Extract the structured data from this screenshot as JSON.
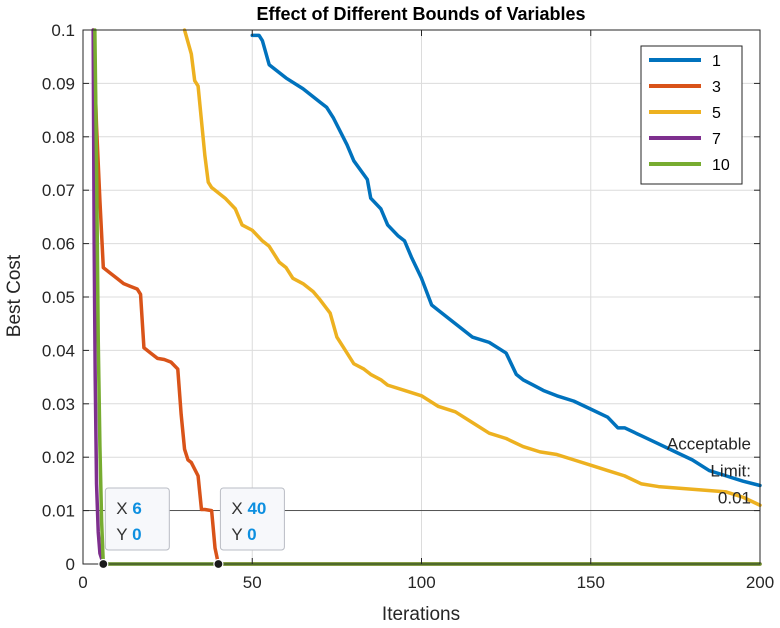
{
  "chart_data": {
    "type": "line",
    "title": "Effect of Different Bounds of Variables",
    "xlabel": "Iterations",
    "ylabel": "Best Cost",
    "xlim": [
      0,
      200
    ],
    "ylim": [
      0,
      0.1
    ],
    "xticks": [
      0,
      50,
      100,
      150,
      200
    ],
    "xtick_labels": [
      "0",
      "50",
      "100",
      "150",
      "200"
    ],
    "yticks": [
      0,
      0.01,
      0.02,
      0.03,
      0.04,
      0.05,
      0.06,
      0.07,
      0.08,
      0.09,
      0.1
    ],
    "ytick_labels": [
      "0",
      "0.01",
      "0.02",
      "0.03",
      "0.04",
      "0.05",
      "0.06",
      "0.07",
      "0.08",
      "0.09",
      "0.1"
    ],
    "grid": true,
    "legend_position": "top-right",
    "series": [
      {
        "name": "1",
        "color": "#0072bd",
        "x": [
          50,
          52,
          53,
          55,
          60,
          65,
          70,
          72,
          74,
          78,
          80,
          84,
          85,
          88,
          90,
          93,
          95,
          97,
          100,
          103,
          105,
          108,
          112,
          115,
          120,
          125,
          128,
          130,
          133,
          136,
          140,
          145,
          150,
          155,
          158,
          160,
          165,
          170,
          175,
          180,
          185,
          190,
          195,
          200
        ],
        "y": [
          0.099,
          0.099,
          0.098,
          0.0935,
          0.091,
          0.089,
          0.0865,
          0.0855,
          0.0835,
          0.0785,
          0.0755,
          0.072,
          0.0685,
          0.0665,
          0.0635,
          0.0615,
          0.0605,
          0.0575,
          0.0535,
          0.0485,
          0.0475,
          0.046,
          0.044,
          0.0425,
          0.0415,
          0.0395,
          0.0355,
          0.0345,
          0.0335,
          0.0325,
          0.0315,
          0.0305,
          0.029,
          0.0275,
          0.0255,
          0.0255,
          0.024,
          0.0225,
          0.021,
          0.0195,
          0.0175,
          0.0165,
          0.0155,
          0.0147
        ]
      },
      {
        "name": "3",
        "color": "#d95319",
        "x": [
          3,
          4,
          5,
          6,
          8,
          10,
          12,
          14,
          16,
          17,
          18,
          20,
          22,
          24,
          26,
          28,
          29,
          30,
          31,
          32,
          34,
          35,
          36,
          38,
          39,
          40,
          200
        ],
        "y": [
          0.1,
          0.082,
          0.068,
          0.0555,
          0.0545,
          0.0535,
          0.0525,
          0.052,
          0.0515,
          0.0505,
          0.0405,
          0.0395,
          0.0385,
          0.0383,
          0.0378,
          0.0365,
          0.028,
          0.0215,
          0.0195,
          0.019,
          0.0165,
          0.0102,
          0.0102,
          0.01,
          0.003,
          0.0,
          0.0
        ]
      },
      {
        "name": "5",
        "color": "#edb120",
        "x": [
          30,
          32,
          33,
          34,
          36,
          37,
          38,
          40,
          42,
          45,
          47,
          50,
          53,
          55,
          58,
          60,
          62,
          65,
          68,
          70,
          73,
          75,
          77,
          80,
          83,
          85,
          88,
          90,
          95,
          100,
          105,
          110,
          115,
          120,
          125,
          130,
          135,
          140,
          145,
          150,
          155,
          160,
          165,
          170,
          180,
          190,
          195,
          200
        ],
        "y": [
          0.1,
          0.0955,
          0.0905,
          0.0895,
          0.0765,
          0.0715,
          0.0705,
          0.0695,
          0.0685,
          0.0665,
          0.0635,
          0.0625,
          0.0605,
          0.0595,
          0.0565,
          0.0555,
          0.0535,
          0.0525,
          0.051,
          0.0495,
          0.047,
          0.0425,
          0.0405,
          0.0375,
          0.0365,
          0.0355,
          0.0345,
          0.0335,
          0.0325,
          0.0315,
          0.0295,
          0.0285,
          0.0265,
          0.0245,
          0.0235,
          0.022,
          0.021,
          0.0205,
          0.0195,
          0.0185,
          0.0175,
          0.0165,
          0.015,
          0.0145,
          0.014,
          0.0135,
          0.0125,
          0.011
        ]
      },
      {
        "name": "7",
        "color": "#7e2f8e",
        "x": [
          3,
          3.3,
          3.6,
          4,
          4.5,
          5,
          6,
          200
        ],
        "y": [
          0.1,
          0.06,
          0.035,
          0.015,
          0.006,
          0.002,
          0.0,
          0.0
        ]
      },
      {
        "name": "10",
        "color": "#77ac30",
        "x": [
          3.5,
          4,
          4.5,
          5,
          5.5,
          6,
          200
        ],
        "y": [
          0.1,
          0.075,
          0.042,
          0.022,
          0.008,
          0.0,
          0.0
        ]
      }
    ],
    "reference_line": {
      "y": 0.01,
      "label_lines": [
        "Acceptable",
        "Limit:",
        "0.01"
      ]
    },
    "datatips": [
      {
        "x_key": "X",
        "x_value": "6",
        "y_key": "Y",
        "y_value": "0",
        "x": 6,
        "y": 0
      },
      {
        "x_key": "X",
        "x_value": "40",
        "y_key": "Y",
        "y_value": "0",
        "x": 40,
        "y": 0
      }
    ]
  }
}
